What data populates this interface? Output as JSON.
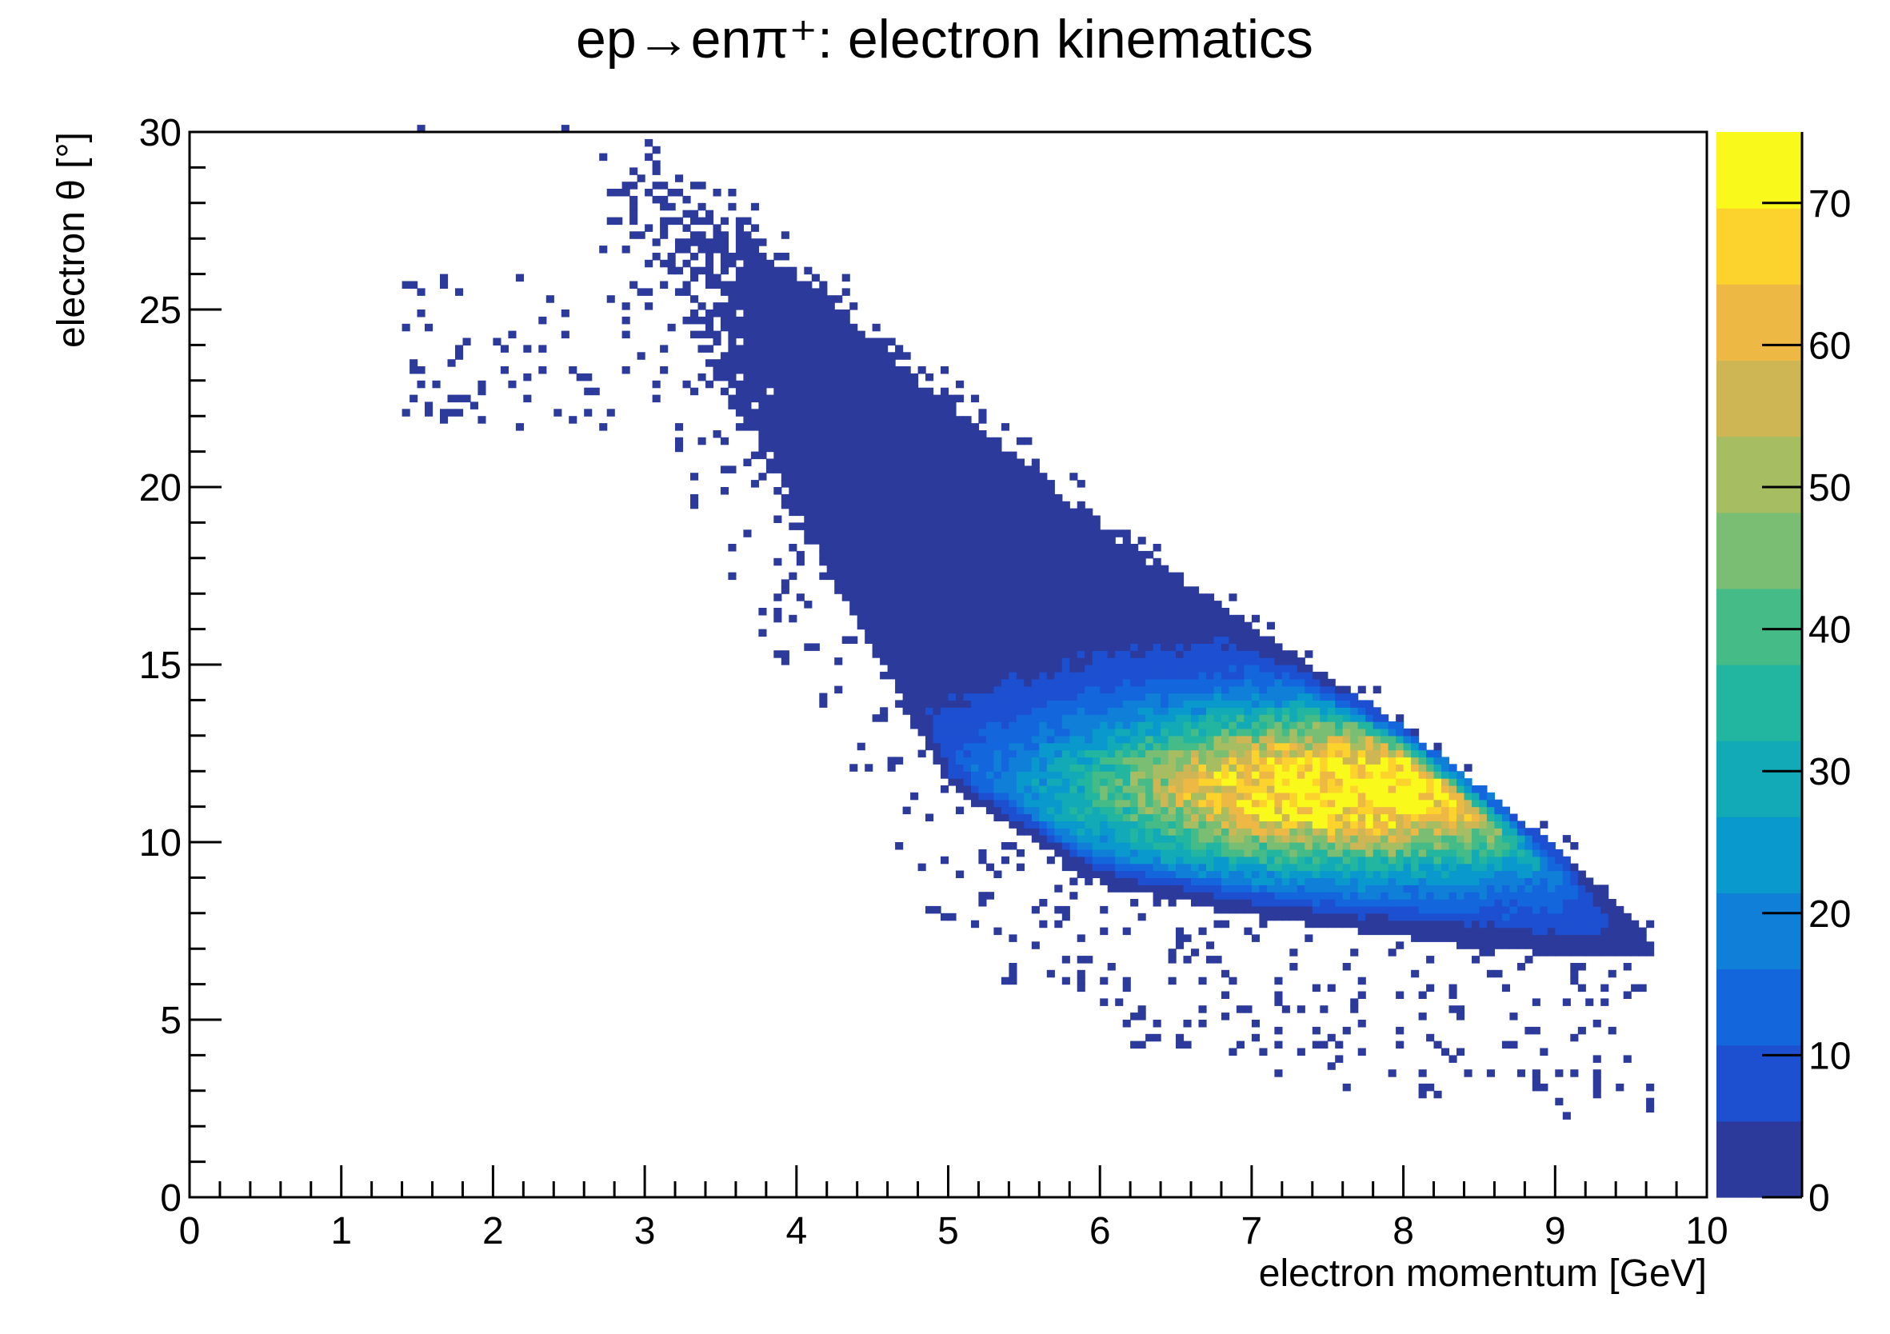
{
  "chart_data": {
    "type": "heatmap",
    "title": "ep→enπ⁺: electron kinematics",
    "xlabel": "electron momentum [GeV]",
    "ylabel": "electron θ [°]",
    "xlim": [
      0,
      10
    ],
    "ylim": [
      0,
      30
    ],
    "x_ticks": [
      "0",
      "1",
      "2",
      "3",
      "4",
      "5",
      "6",
      "7",
      "8",
      "9",
      "10"
    ],
    "y_ticks": [
      "0",
      "5",
      "10",
      "15",
      "20",
      "25",
      "30"
    ],
    "colorbar": {
      "range": [
        0,
        75
      ],
      "ticks": [
        "0",
        "10",
        "20",
        "30",
        "40",
        "50",
        "60",
        "70"
      ],
      "palette": [
        "#2b3a9b",
        "#1d4fd1",
        "#1466dd",
        "#0f7fd8",
        "#0a99cc",
        "#12aab6",
        "#22b5a0",
        "#45bb87",
        "#79be73",
        "#a6bd62",
        "#cfb655",
        "#eeb845",
        "#fcd22c",
        "#f9f91c"
      ]
    },
    "bin_width": {
      "x": 0.05,
      "y": 0.2
    },
    "distribution": "Events concentrated in a diagonal band from about (3 GeV, 29°) down to (9.6 GeV, 7°); peak density about 70–75 counts near p ≈ 7.6 GeV, θ ≈ 11.5°; sparse scattered counts to the left of the band down to p ≈ 1.3 GeV",
    "peak": {
      "x": 7.6,
      "y": 11.5,
      "count": 72
    },
    "region_support": {
      "x": [
        3.0,
        4.0,
        5.0,
        6.0,
        7.0,
        8.0,
        9.0,
        9.6
      ],
      "y_upper": [
        29.8,
        26.5,
        22.5,
        19.0,
        16.0,
        13.2,
        9.8,
        7.3
      ],
      "y_lower": [
        26.0,
        18.5,
        11.5,
        8.8,
        7.9,
        7.3,
        6.8,
        6.8
      ]
    }
  }
}
